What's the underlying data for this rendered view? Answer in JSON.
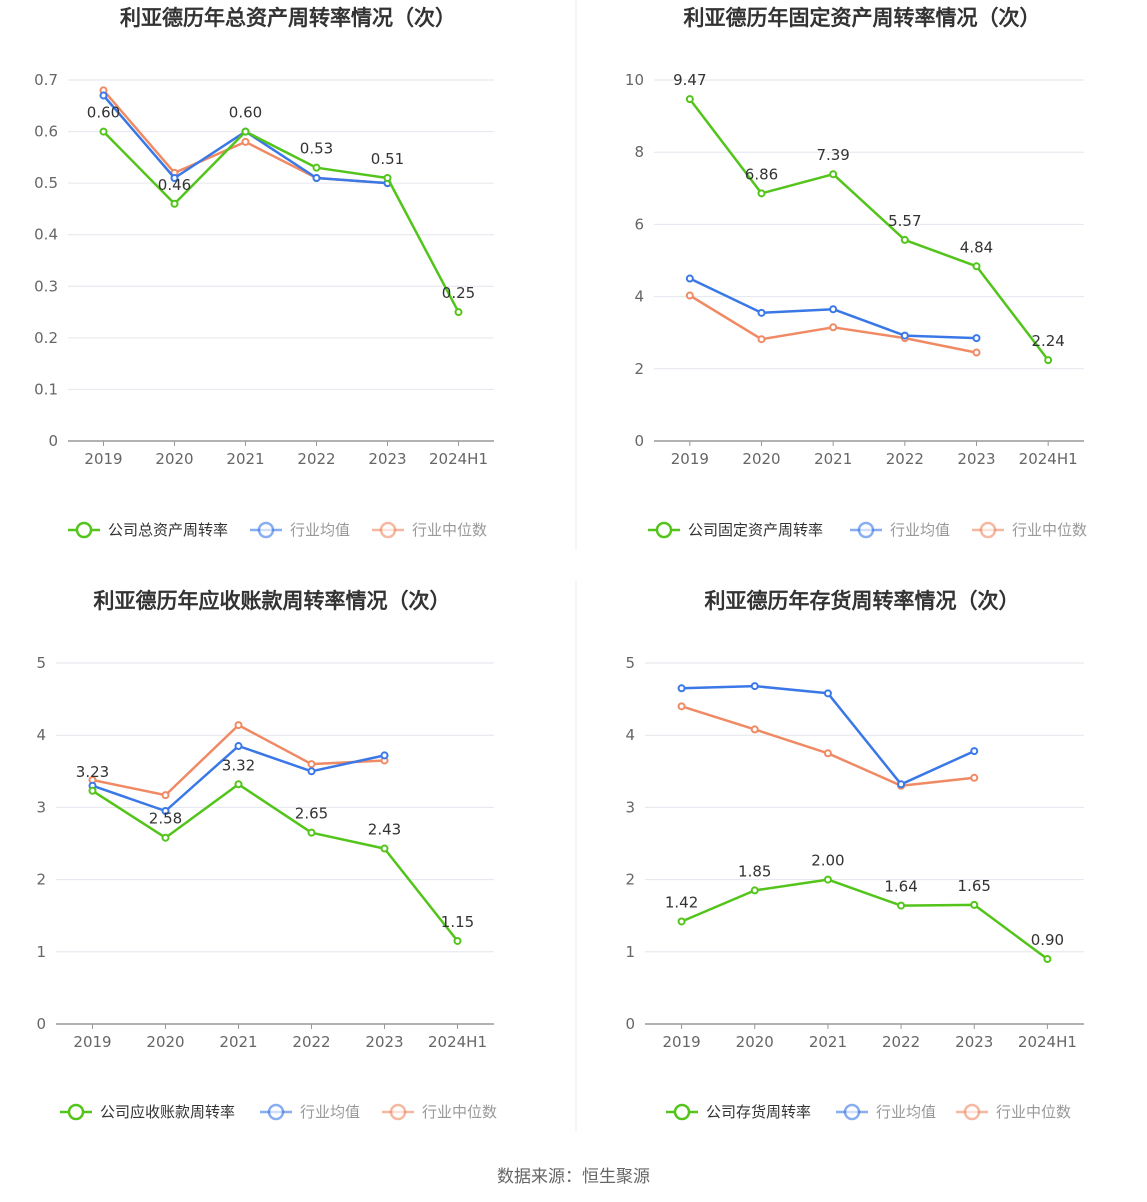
{
  "colors": {
    "company": "#52c41a",
    "average": "#3a78e7",
    "median": "#f08a64",
    "grid": "#e3e6ee",
    "axis": "#999999"
  },
  "legend": {
    "average": "行业均值",
    "median": "行业中位数"
  },
  "source": "数据来源：恒生聚源",
  "chart_data": [
    {
      "type": "line",
      "title": "利亚德历年总资产周转率情况（次）",
      "categories": [
        "2019",
        "2020",
        "2021",
        "2022",
        "2023",
        "2024H1"
      ],
      "ylim": [
        0,
        0.7
      ],
      "yticks": [
        0,
        0.1,
        0.2,
        0.3,
        0.4,
        0.5,
        0.6,
        0.7
      ],
      "ytick_labels": [
        "0",
        "0.1",
        "0.2",
        "0.3",
        "0.4",
        "0.5",
        "0.6",
        "0.7"
      ],
      "grid": true,
      "legend_position": "bottom",
      "series": [
        {
          "name": "公司总资产周转率",
          "key": "company",
          "values": [
            0.6,
            0.46,
            0.6,
            0.53,
            0.51,
            0.25
          ],
          "labels": [
            "0.60",
            "0.46",
            "0.60",
            "0.53",
            "0.51",
            "0.25"
          ]
        },
        {
          "name": "行业均值",
          "key": "average",
          "values": [
            0.67,
            0.51,
            0.6,
            0.51,
            0.5,
            null
          ]
        },
        {
          "name": "行业中位数",
          "key": "median",
          "values": [
            0.68,
            0.52,
            0.58,
            0.51,
            0.5,
            null
          ]
        }
      ]
    },
    {
      "type": "line",
      "title": "利亚德历年固定资产周转率情况（次）",
      "categories": [
        "2019",
        "2020",
        "2021",
        "2022",
        "2023",
        "2024H1"
      ],
      "ylim": [
        0,
        10
      ],
      "yticks": [
        0,
        2,
        4,
        6,
        8,
        10
      ],
      "ytick_labels": [
        "0",
        "2",
        "4",
        "6",
        "8",
        "10"
      ],
      "grid": true,
      "legend_position": "bottom",
      "series": [
        {
          "name": "公司固定资产周转率",
          "key": "company",
          "values": [
            9.47,
            6.86,
            7.39,
            5.57,
            4.84,
            2.24
          ],
          "labels": [
            "9.47",
            "6.86",
            "7.39",
            "5.57",
            "4.84",
            "2.24"
          ]
        },
        {
          "name": "行业均值",
          "key": "average",
          "values": [
            4.5,
            3.55,
            3.65,
            2.92,
            2.85,
            null
          ]
        },
        {
          "name": "行业中位数",
          "key": "median",
          "values": [
            4.03,
            2.82,
            3.15,
            2.85,
            2.45,
            null
          ]
        }
      ]
    },
    {
      "type": "line",
      "title": "利亚德历年应收账款周转率情况（次）",
      "categories": [
        "2019",
        "2020",
        "2021",
        "2022",
        "2023",
        "2024H1"
      ],
      "ylim": [
        0,
        5
      ],
      "yticks": [
        0,
        1,
        2,
        3,
        4,
        5
      ],
      "ytick_labels": [
        "0",
        "1",
        "2",
        "3",
        "4",
        "5"
      ],
      "grid": true,
      "legend_position": "bottom",
      "series": [
        {
          "name": "公司应收账款周转率",
          "key": "company",
          "values": [
            3.23,
            2.58,
            3.32,
            2.65,
            2.43,
            1.15
          ],
          "labels": [
            "3.23",
            "2.58",
            "3.32",
            "2.65",
            "2.43",
            "1.15"
          ]
        },
        {
          "name": "行业均值",
          "key": "average",
          "values": [
            3.3,
            2.95,
            3.85,
            3.5,
            3.72,
            null
          ]
        },
        {
          "name": "行业中位数",
          "key": "median",
          "values": [
            3.38,
            3.17,
            4.14,
            3.6,
            3.65,
            null
          ]
        }
      ]
    },
    {
      "type": "line",
      "title": "利亚德历年存货周转率情况（次）",
      "categories": [
        "2019",
        "2020",
        "2021",
        "2022",
        "2023",
        "2024H1"
      ],
      "ylim": [
        0,
        5
      ],
      "yticks": [
        0,
        1,
        2,
        3,
        4,
        5
      ],
      "ytick_labels": [
        "0",
        "1",
        "2",
        "3",
        "4",
        "5"
      ],
      "grid": true,
      "legend_position": "bottom",
      "series": [
        {
          "name": "公司存货周转率",
          "key": "company",
          "values": [
            1.42,
            1.85,
            2.0,
            1.64,
            1.65,
            0.9
          ],
          "labels": [
            "1.42",
            "1.85",
            "2.00",
            "1.64",
            "1.65",
            "0.90"
          ]
        },
        {
          "name": "行业均值",
          "key": "average",
          "values": [
            4.65,
            4.68,
            4.58,
            3.32,
            3.78,
            null
          ]
        },
        {
          "name": "行业中位数",
          "key": "median",
          "values": [
            4.4,
            4.08,
            3.75,
            3.3,
            3.41,
            null
          ]
        }
      ]
    }
  ]
}
